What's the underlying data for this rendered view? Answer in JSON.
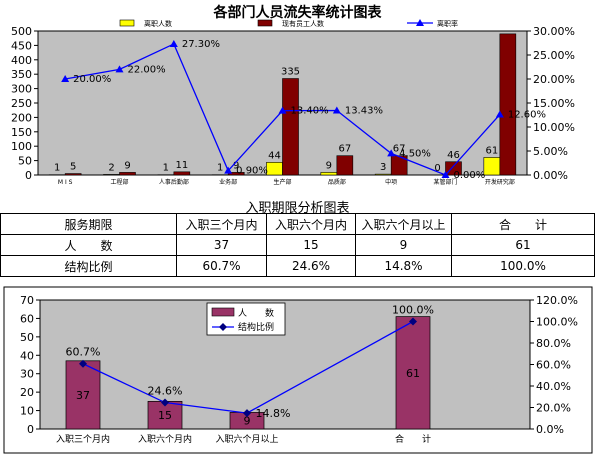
{
  "chart_data": [
    {
      "type": "bar+line",
      "title": "各部门人员流失率统计图表",
      "categories": [
        "M I S",
        "工程部",
        "人事后勤部",
        "业务部",
        "生产部",
        "品质部",
        "中项",
        "某管部门",
        "开发研究部"
      ],
      "series": [
        {
          "name": "离职人数",
          "type": "bar",
          "axis": "left",
          "color": "#FFFF00",
          "values": [
            1,
            2,
            1,
            1,
            44,
            9,
            3,
            0,
            61
          ]
        },
        {
          "name": "现有员工人数",
          "type": "bar",
          "axis": "left",
          "color": "#800000",
          "values": [
            5,
            9,
            11,
            9,
            335,
            67,
            67,
            46,
            490
          ]
        },
        {
          "name": "离职率",
          "type": "line",
          "axis": "right",
          "color": "#0000FF",
          "values": [
            20.0,
            22.0,
            27.3,
            0.9,
            13.4,
            13.43,
            4.5,
            0.0,
            12.6
          ]
        }
      ],
      "bar_labels": [
        [
          "1",
          "2",
          "1",
          "1",
          "44",
          "9",
          "3",
          "0",
          "61"
        ],
        [
          "5",
          "9",
          "11",
          "9",
          "335",
          "67",
          "67",
          "46",
          ""
        ]
      ],
      "line_labels": [
        "20.00%",
        "22.00%",
        "27.30%",
        "0.90%",
        "13.40%",
        "13.43%",
        "4.50%",
        "0.00%",
        "12.60%"
      ],
      "left_ticks": [
        "0",
        "50",
        "100",
        "150",
        "200",
        "250",
        "300",
        "350",
        "400",
        "450",
        "500"
      ],
      "right_ticks": [
        "0.00%",
        "5.00%",
        "10.00%",
        "15.00%",
        "20.00%",
        "25.00%",
        "30.00%"
      ],
      "ylim": [
        0,
        500
      ],
      "y2lim": [
        0,
        30
      ],
      "legend": "top"
    },
    {
      "type": "bar+line",
      "categories": [
        "入职三个月内",
        "入职六个月内",
        "入职六个月以上",
        "合　　计"
      ],
      "series": [
        {
          "name": "人　　数",
          "type": "bar",
          "axis": "left",
          "color": "#993366",
          "values": [
            37,
            15,
            9,
            61
          ]
        },
        {
          "name": "结构比例",
          "type": "line",
          "axis": "right",
          "color": "#000080",
          "values": [
            60.7,
            24.6,
            14.8,
            100.0
          ]
        }
      ],
      "bar_labels": [
        "37",
        "15",
        "9",
        "61"
      ],
      "line_labels": [
        "60.7%",
        "24.6%",
        "14.8%",
        "100.0%"
      ],
      "left_ticks": [
        "0",
        "10",
        "20",
        "30",
        "40",
        "50",
        "60",
        "70"
      ],
      "right_ticks": [
        "0.0%",
        "20.0%",
        "40.0%",
        "60.0%",
        "80.0%",
        "100.0%",
        "120.0%"
      ],
      "ylim": [
        0,
        70
      ],
      "y2lim": [
        0,
        120
      ],
      "legend": "top-left"
    }
  ],
  "table": {
    "title": "入职期限分析图表",
    "header": [
      "服务期限",
      "入职三个月内",
      "入职六个月内",
      "入职六个月以上",
      "合　　计"
    ],
    "rows": [
      [
        "人　　数",
        "37",
        "15",
        "9",
        "61"
      ],
      [
        "结构比例",
        "60.7%",
        "24.6%",
        "14.8%",
        "100.0%"
      ]
    ]
  },
  "colors": {
    "plot_bg": "#C0C0C0",
    "table_border": "#000000"
  }
}
